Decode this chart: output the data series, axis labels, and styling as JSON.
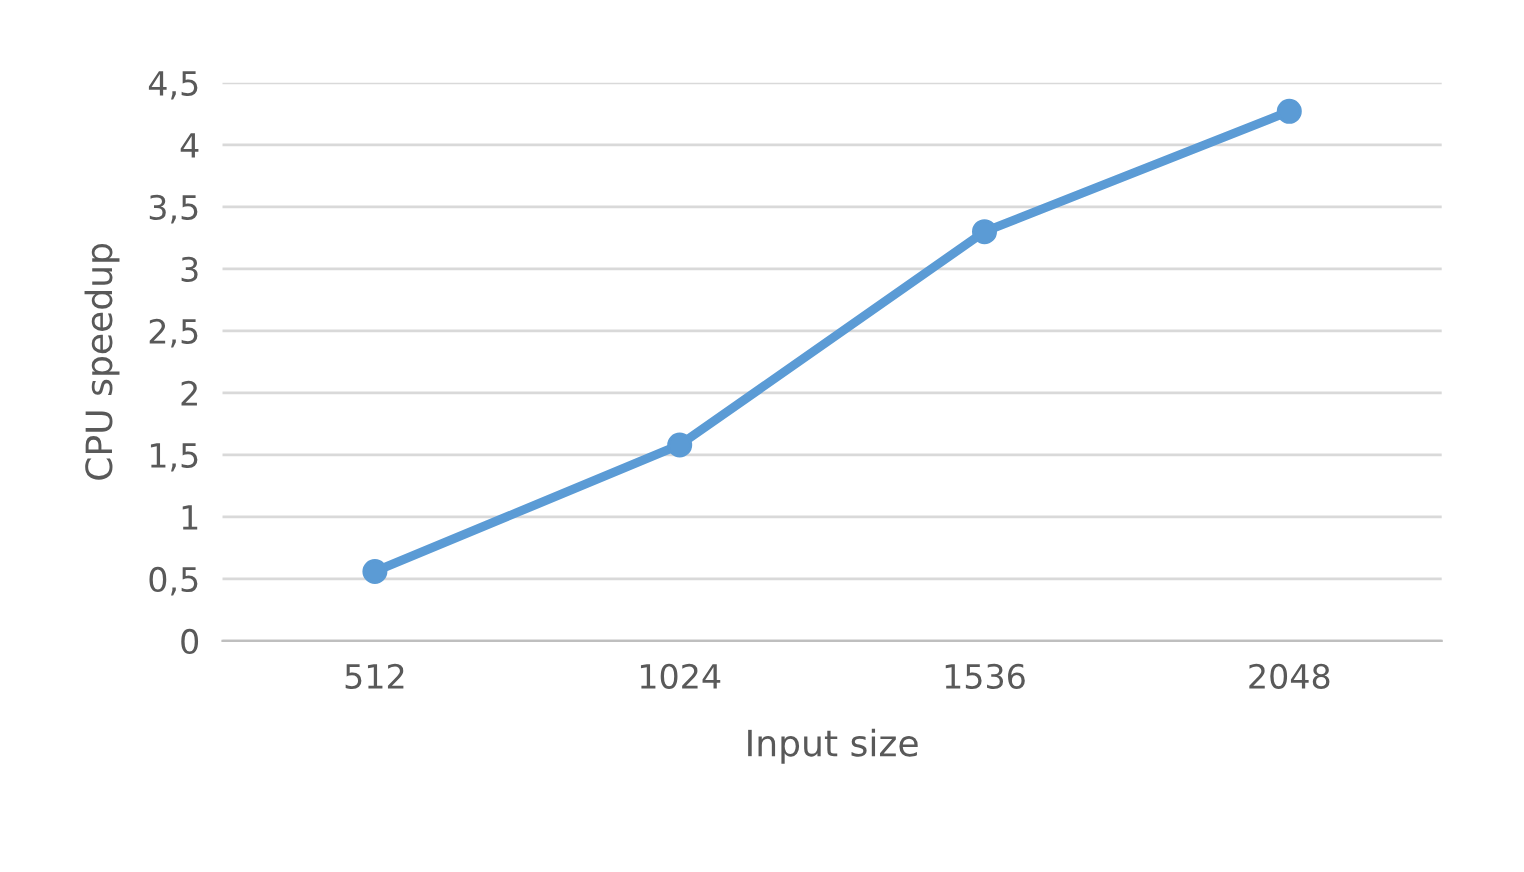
{
  "chart_data": {
    "type": "line",
    "xlabel": "Input size",
    "ylabel": "CPU speedup",
    "categories": [
      "512",
      "1024",
      "1536",
      "2048"
    ],
    "series": [
      {
        "color": "#5b9bd5",
        "values": [
          0.56,
          1.58,
          3.3,
          4.27
        ]
      }
    ],
    "ylim": [
      0,
      4.5
    ],
    "yticks": [
      0,
      {
        "value": 0.5,
        "label": "0,5"
      },
      1,
      {
        "value": 1.5,
        "label": "1,5"
      },
      2,
      {
        "value": 2.5,
        "label": "2,5"
      },
      3,
      {
        "value": 3.5,
        "label": "3,5"
      },
      4,
      {
        "value": 4.5,
        "label": "4,5"
      }
    ],
    "grid": "y",
    "marker": "circle",
    "line_style": "solid",
    "legend": false
  }
}
